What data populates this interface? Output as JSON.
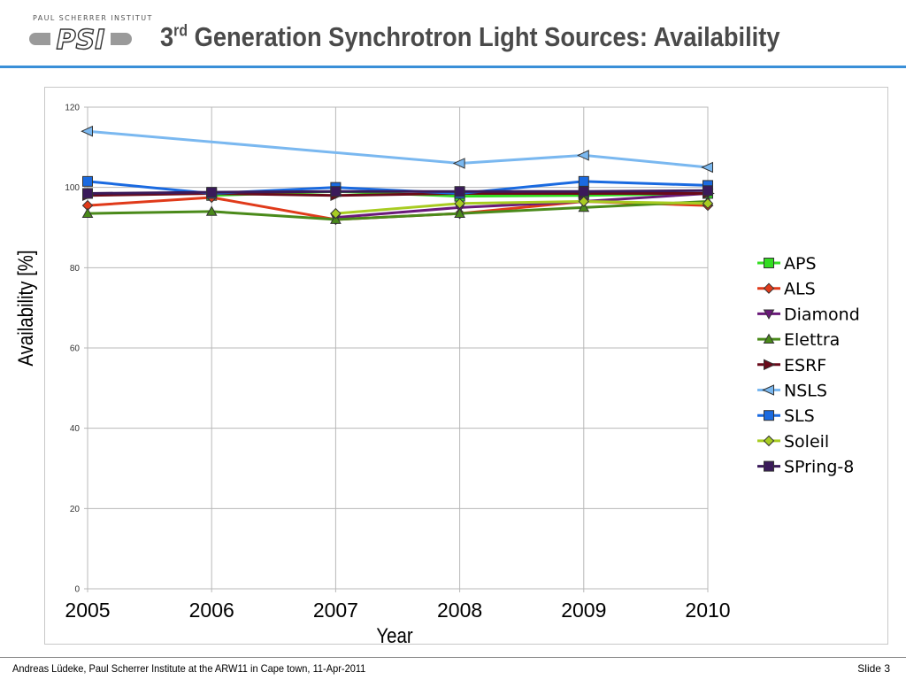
{
  "header": {
    "logo_text": "PAUL SCHERRER INSTITUT",
    "logo_mark": "PSI",
    "title_prefix": "3",
    "title_superscript": "rd",
    "title_rest": " Generation Synchrotron Light Sources: Availability"
  },
  "footer": {
    "left": "Andreas Lüdeke, Paul Scherrer Institute at the ARW11 in Cape town, 11-Apr-2011",
    "right": "Slide 3"
  },
  "colors": {
    "accent_rule": "#3a8fd8"
  },
  "chart_data": {
    "type": "line",
    "xlabel": "Year",
    "ylabel": "Availability [%]",
    "x": [
      2005,
      2006,
      2007,
      2008,
      2009,
      2010
    ],
    "ylim": [
      0,
      120
    ],
    "yticks": [
      0,
      20,
      40,
      60,
      80,
      100,
      120
    ],
    "grid": true,
    "legend_position": "right",
    "series": [
      {
        "name": "APS",
        "marker": "square",
        "color": "#33dd22",
        "values": [
          null,
          98.0,
          99.0,
          97.8,
          98.0,
          98.5
        ]
      },
      {
        "name": "ALS",
        "marker": "diamond",
        "color": "#e03a1a",
        "values": [
          95.5,
          97.5,
          92.0,
          93.5,
          96.5,
          95.5
        ]
      },
      {
        "name": "Diamond",
        "marker": "triangle-down",
        "color": "#6a1a7a",
        "values": [
          null,
          null,
          92.5,
          95.0,
          96.5,
          98.5
        ]
      },
      {
        "name": "Elettra",
        "marker": "triangle-up",
        "color": "#4a8a1a",
        "values": [
          93.5,
          94.0,
          92.0,
          93.5,
          95.0,
          96.5
        ]
      },
      {
        "name": "ESRF",
        "marker": "triangle-right",
        "color": "#6a0a1a",
        "values": [
          98.0,
          98.5,
          98.0,
          98.5,
          98.5,
          98.5
        ]
      },
      {
        "name": "NSLS",
        "marker": "triangle-left",
        "color": "#7ab8f0",
        "values": [
          114.0,
          null,
          null,
          106.0,
          108.0,
          105.0
        ]
      },
      {
        "name": "SLS",
        "marker": "square",
        "color": "#1a6ae0",
        "values": [
          101.5,
          98.5,
          100.0,
          98.5,
          101.5,
          100.5
        ]
      },
      {
        "name": "Soleil",
        "marker": "diamond",
        "color": "#a8cc22",
        "values": [
          null,
          null,
          93.5,
          96.0,
          96.5,
          96.0
        ]
      },
      {
        "name": "SPring-8",
        "marker": "square",
        "color": "#3a1a5a",
        "values": [
          98.5,
          98.8,
          99.0,
          99.0,
          99.0,
          99.2
        ]
      }
    ]
  }
}
